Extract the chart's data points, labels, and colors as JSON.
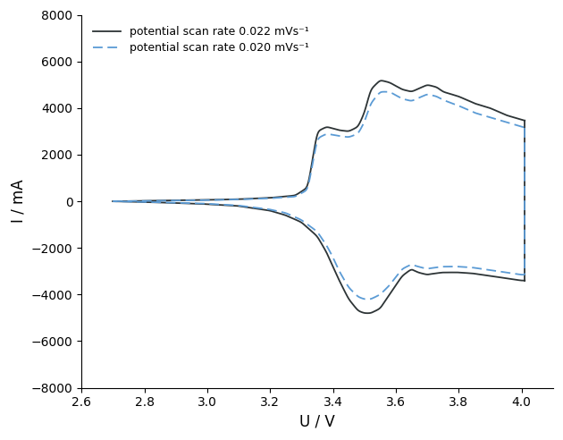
{
  "xlabel": "U / V",
  "ylabel": "I / mA",
  "xlim": [
    2.6,
    4.1
  ],
  "ylim": [
    -8000,
    8000
  ],
  "xticks": [
    2.6,
    2.8,
    3.0,
    3.2,
    3.4,
    3.6,
    3.8,
    4.0
  ],
  "yticks": [
    -8000,
    -6000,
    -4000,
    -2000,
    0,
    2000,
    4000,
    6000,
    8000
  ],
  "color_solid": "#2d3436",
  "color_dashed": "#5b9bd5",
  "legend_label_solid": "potential scan rate 0.022 mVs⁻¹",
  "legend_label_dashed": "potential scan rate 0.020 mVs⁻¹",
  "background_color": "#ffffff",
  "figsize": [
    6.3,
    4.92
  ],
  "dpi": 100,
  "fwd_u_1": [
    2.7,
    2.75,
    2.8,
    2.9,
    3.0,
    3.1,
    3.2,
    3.28,
    3.32,
    3.35,
    3.38,
    3.42,
    3.45,
    3.48,
    3.5,
    3.52,
    3.55,
    3.58,
    3.62,
    3.65,
    3.7,
    3.73,
    3.75,
    3.8,
    3.85,
    3.9,
    3.95,
    4.0,
    4.01
  ],
  "fwd_i_1": [
    0,
    10,
    20,
    40,
    60,
    90,
    150,
    250,
    600,
    3000,
    3200,
    3050,
    3000,
    3200,
    3800,
    4800,
    5200,
    5100,
    4800,
    4700,
    5000,
    4900,
    4700,
    4500,
    4200,
    4000,
    3700,
    3500,
    3450
  ],
  "rev_u_1": [
    4.01,
    4.0,
    3.95,
    3.9,
    3.85,
    3.8,
    3.75,
    3.72,
    3.7,
    3.67,
    3.65,
    3.62,
    3.58,
    3.55,
    3.52,
    3.5,
    3.48,
    3.45,
    3.42,
    3.4,
    3.38,
    3.35,
    3.3,
    3.25,
    3.2,
    3.1,
    3.0,
    2.9,
    2.8,
    2.7
  ],
  "rev_i_1": [
    -3400,
    -3400,
    -3300,
    -3200,
    -3100,
    -3050,
    -3050,
    -3100,
    -3150,
    -3050,
    -2900,
    -3200,
    -4000,
    -4600,
    -4800,
    -4800,
    -4700,
    -4200,
    -3400,
    -2800,
    -2200,
    -1500,
    -900,
    -600,
    -400,
    -200,
    -120,
    -70,
    -30,
    0
  ],
  "fwd_u_2": [
    2.7,
    2.75,
    2.8,
    2.9,
    3.0,
    3.1,
    3.2,
    3.28,
    3.32,
    3.35,
    3.38,
    3.42,
    3.45,
    3.48,
    3.5,
    3.52,
    3.55,
    3.58,
    3.62,
    3.65,
    3.7,
    3.73,
    3.75,
    3.8,
    3.85,
    3.9,
    3.95,
    4.0,
    4.01
  ],
  "fwd_i_2": [
    0,
    10,
    15,
    35,
    50,
    80,
    130,
    200,
    500,
    2700,
    2900,
    2800,
    2750,
    2900,
    3400,
    4200,
    4700,
    4700,
    4400,
    4300,
    4600,
    4500,
    4350,
    4100,
    3800,
    3600,
    3400,
    3200,
    3150
  ],
  "rev_u_2": [
    4.01,
    4.0,
    3.95,
    3.9,
    3.85,
    3.8,
    3.75,
    3.72,
    3.7,
    3.67,
    3.65,
    3.62,
    3.58,
    3.55,
    3.52,
    3.5,
    3.48,
    3.45,
    3.42,
    3.4,
    3.38,
    3.35,
    3.3,
    3.25,
    3.2,
    3.1,
    3.0,
    2.9,
    2.8,
    2.7
  ],
  "rev_i_2": [
    -3150,
    -3150,
    -3050,
    -2950,
    -2850,
    -2800,
    -2800,
    -2850,
    -2900,
    -2800,
    -2700,
    -2900,
    -3600,
    -4000,
    -4200,
    -4200,
    -4100,
    -3700,
    -3000,
    -2400,
    -1900,
    -1300,
    -800,
    -500,
    -350,
    -180,
    -100,
    -60,
    -25,
    0
  ]
}
